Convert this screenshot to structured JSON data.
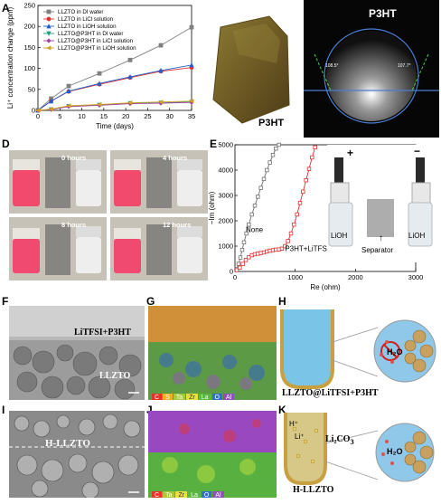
{
  "panels": {
    "A": "A",
    "B": "B",
    "C": "C",
    "D": "D",
    "E": "E",
    "F": "F",
    "G": "G",
    "H": "H",
    "I": "I",
    "J": "J",
    "K": "K"
  },
  "panel_b_text": "P3HT",
  "panel_c": {
    "title": "P3HT",
    "angle_left": "108.5°",
    "angle_right": "107.7°"
  },
  "panel_d_times": [
    "0 hours",
    "4 hours",
    "8 hours",
    "12 hours"
  ],
  "panel_e": {
    "label_none": "None",
    "label_film": "P3HT+LiTFSI film",
    "plus": "+",
    "minus": "−",
    "lioh_left": "LiOH",
    "lioh_right": "LiOH",
    "separator": "Separator"
  },
  "panel_f": {
    "top_label": "LiTFSI+P3HT",
    "bottom_label": "LLZTO"
  },
  "panel_g_elements": [
    "C",
    "S",
    "Ta",
    "Zr",
    "La",
    "O",
    "Al"
  ],
  "panel_h": {
    "h2o": "H₂O",
    "caption": "LLZTO@LiTFSI+P3HT"
  },
  "panel_i_label": "H-LLZTO",
  "panel_j_elements": [
    "C",
    "Ta",
    "Zr",
    "La",
    "O",
    "Al"
  ],
  "panel_k": {
    "h_plus": "H⁺",
    "li_plus": "Li⁺",
    "li2co": "Li₂CO",
    "sub3": "3",
    "h2o": "H₂O",
    "caption": "H-LLZTO"
  },
  "colors": {
    "C": "#e8332a",
    "S": "#f0b020",
    "Ta": "#a8c838",
    "Zr": "#e8e040",
    "La": "#58b840",
    "O": "#3070c8",
    "Al": "#9050b8"
  },
  "chart_data": [
    {
      "type": "line",
      "panel": "A",
      "xlabel": "Time (days)",
      "ylabel": "Li⁺ concentration change (ppm)",
      "xlim": [
        0,
        35
      ],
      "ylim": [
        0,
        250
      ],
      "xticks": [
        0,
        5,
        10,
        15,
        20,
        25,
        30,
        35
      ],
      "yticks": [
        0,
        50,
        100,
        150,
        200,
        250
      ],
      "legend_position": "top-left",
      "series": [
        {
          "name": "LLZTO in DI water",
          "color": "#808080",
          "marker": "square",
          "x": [
            0,
            3,
            7,
            14,
            21,
            28,
            35
          ],
          "y": [
            0,
            28,
            58,
            88,
            120,
            155,
            198
          ]
        },
        {
          "name": "LLZTO in LiCl solution",
          "color": "#e03030",
          "marker": "circle",
          "x": [
            0,
            3,
            7,
            14,
            21,
            28,
            35
          ],
          "y": [
            0,
            22,
            45,
            62,
            78,
            93,
            102
          ]
        },
        {
          "name": "LLZTO in LiOH solution",
          "color": "#2060d0",
          "marker": "triangle-up",
          "x": [
            0,
            3,
            7,
            14,
            21,
            28,
            35
          ],
          "y": [
            0,
            22,
            46,
            64,
            80,
            95,
            108
          ]
        },
        {
          "name": "LLZTO@P3HT in DI water",
          "color": "#20a080",
          "marker": "triangle-down",
          "x": [
            0,
            3,
            7,
            14,
            21,
            28,
            35
          ],
          "y": [
            0,
            2,
            10,
            13,
            17,
            18,
            20
          ]
        },
        {
          "name": "LLZTO@P3HT in LiCl solution",
          "color": "#a040a0",
          "marker": "diamond",
          "x": [
            0,
            3,
            7,
            14,
            21,
            28,
            35
          ],
          "y": [
            0,
            2,
            9,
            12,
            16,
            17,
            19
          ]
        },
        {
          "name": "LLZTO@P3HT in LiOH solution",
          "color": "#d0a020",
          "marker": "triangle-left",
          "x": [
            0,
            3,
            7,
            14,
            21,
            28,
            35
          ],
          "y": [
            0,
            3,
            11,
            14,
            18,
            20,
            22
          ]
        }
      ]
    },
    {
      "type": "line",
      "panel": "E",
      "xlabel": "Re (ohm)",
      "ylabel": "−Im (ohm)",
      "xlim": [
        0,
        3000
      ],
      "ylim": [
        0,
        5000
      ],
      "xticks": [
        0,
        1000,
        2000,
        3000
      ],
      "yticks": [
        0,
        1000,
        2000,
        3000,
        4000,
        5000
      ],
      "series": [
        {
          "name": "None",
          "color": "#707070",
          "marker": "square",
          "x": [
            30,
            60,
            90,
            120,
            150,
            190,
            230,
            280,
            330,
            380,
            430,
            480,
            530,
            580,
            630,
            680,
            730
          ],
          "y": [
            100,
            300,
            550,
            850,
            1150,
            1500,
            1850,
            2250,
            2600,
            2950,
            3300,
            3650,
            4000,
            4300,
            4600,
            4850,
            5000
          ]
        },
        {
          "name": "P3HT+LiTFSI film",
          "color": "#e03030",
          "marker": "square",
          "x": [
            30,
            80,
            130,
            180,
            230,
            280,
            330,
            380,
            430,
            480,
            530,
            580,
            630,
            680,
            730,
            780,
            830,
            880,
            930,
            980,
            1030,
            1080,
            1130,
            1180,
            1230,
            1280,
            1330
          ],
          "y": [
            50,
            150,
            300,
            450,
            560,
            640,
            680,
            700,
            730,
            750,
            790,
            820,
            840,
            860,
            870,
            900,
            1000,
            1200,
            1500,
            1850,
            2250,
            2700,
            3150,
            3600,
            4050,
            4500,
            4900
          ]
        }
      ]
    }
  ]
}
